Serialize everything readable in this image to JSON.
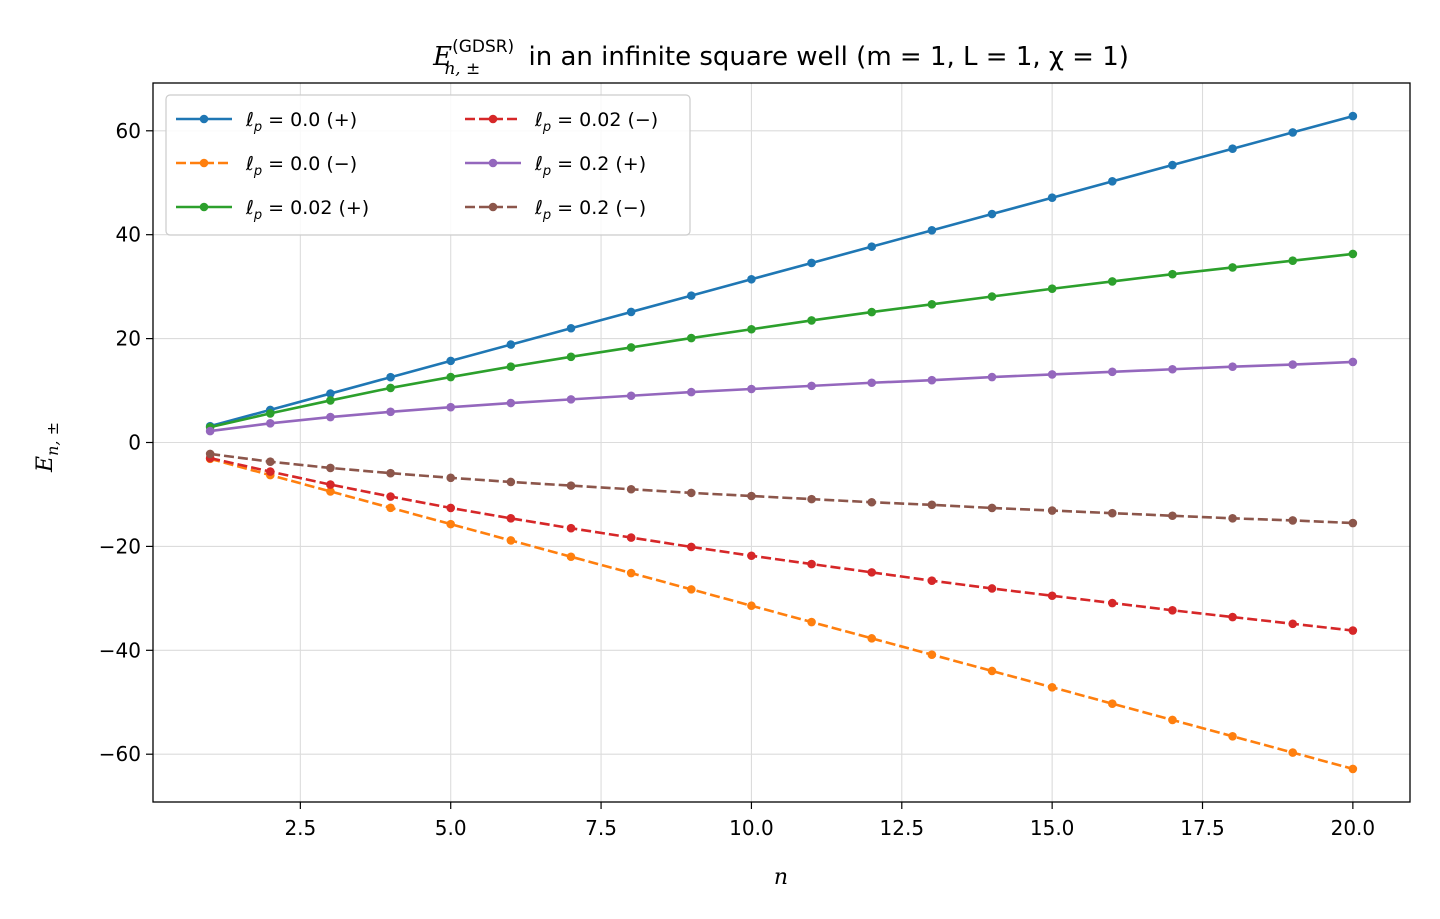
{
  "chart_data": {
    "type": "line",
    "title": {
      "symbol": "E",
      "superscript": "(GDSR)",
      "subscript": "n, ±",
      "rest": " in an infinite square well  (m = 1, L = 1, χ = 1)"
    },
    "xlabel": "n",
    "ylabel": "E_{n, ±}",
    "ylabel_parts": {
      "base": "E",
      "sub": "n, ±"
    },
    "xlim": [
      0.05,
      20.95
    ],
    "ylim": [
      -69.2,
      69.2
    ],
    "xticks": [
      2.5,
      5.0,
      7.5,
      10.0,
      12.5,
      15.0,
      17.5,
      20.0
    ],
    "xtick_labels": [
      "2.5",
      "5.0",
      "7.5",
      "10.0",
      "12.5",
      "15.0",
      "17.5",
      "20.0"
    ],
    "yticks": [
      -60,
      -40,
      -20,
      0,
      20,
      40,
      60
    ],
    "ytick_labels": [
      "−60",
      "−40",
      "−20",
      "0",
      "20",
      "40",
      "60"
    ],
    "grid": true,
    "legend_position": "top-left",
    "legend_columns": 2,
    "x": [
      1,
      2,
      3,
      4,
      5,
      6,
      7,
      8,
      9,
      10,
      11,
      12,
      13,
      14,
      15,
      16,
      17,
      18,
      19,
      20
    ],
    "series": [
      {
        "name": "ℓp = 0.0 (+)",
        "label_parts": {
          "l": "ℓ",
          "sub": "p",
          "rest": " = 0.0 (+)"
        },
        "color": "#1f77b4",
        "dash": "solid",
        "values": [
          3.14,
          6.28,
          9.42,
          12.57,
          15.71,
          18.85,
          21.99,
          25.13,
          28.27,
          31.42,
          34.56,
          37.7,
          40.84,
          43.98,
          47.12,
          50.27,
          53.41,
          56.55,
          59.69,
          62.83
        ]
      },
      {
        "name": "ℓp = 0.0 (−)",
        "label_parts": {
          "l": "ℓ",
          "sub": "p",
          "rest": " = 0.0 (−)"
        },
        "color": "#ff7f0e",
        "dash": "dashed",
        "values": [
          -3.14,
          -6.28,
          -9.42,
          -12.57,
          -15.71,
          -18.85,
          -21.99,
          -25.13,
          -28.27,
          -31.42,
          -34.56,
          -37.7,
          -40.84,
          -43.98,
          -47.12,
          -50.27,
          -53.41,
          -56.55,
          -59.69,
          -62.83
        ]
      },
      {
        "name": "ℓp = 0.02 (+)",
        "label_parts": {
          "l": "ℓ",
          "sub": "p",
          "rest": " = 0.02 (+)"
        },
        "color": "#2ca02c",
        "dash": "solid",
        "values": [
          2.95,
          5.6,
          8.1,
          10.5,
          12.6,
          14.6,
          16.5,
          18.3,
          20.1,
          21.8,
          23.5,
          25.1,
          26.6,
          28.1,
          29.6,
          31.0,
          32.4,
          33.7,
          35.0,
          36.3
        ]
      },
      {
        "name": "ℓp = 0.02 (−)",
        "label_parts": {
          "l": "ℓ",
          "sub": "p",
          "rest": " = 0.02 (−)"
        },
        "color": "#d62728",
        "dash": "dashed",
        "values": [
          -3.0,
          -5.6,
          -8.1,
          -10.4,
          -12.6,
          -14.6,
          -16.5,
          -18.3,
          -20.1,
          -21.8,
          -23.4,
          -25.0,
          -26.6,
          -28.1,
          -29.5,
          -30.9,
          -32.3,
          -33.6,
          -34.9,
          -36.2
        ]
      },
      {
        "name": "ℓp = 0.2 (+)",
        "label_parts": {
          "l": "ℓ",
          "sub": "p",
          "rest": " = 0.2 (+)"
        },
        "color": "#9467bd",
        "dash": "solid",
        "values": [
          2.2,
          3.7,
          4.9,
          5.9,
          6.8,
          7.6,
          8.3,
          9.0,
          9.7,
          10.3,
          10.9,
          11.5,
          12.0,
          12.6,
          13.1,
          13.6,
          14.1,
          14.6,
          15.0,
          15.5
        ]
      },
      {
        "name": "ℓp = 0.2 (−)",
        "label_parts": {
          "l": "ℓ",
          "sub": "p",
          "rest": " = 0.2 (−)"
        },
        "color": "#8c564b",
        "dash": "dashed",
        "values": [
          -2.2,
          -3.7,
          -4.9,
          -5.9,
          -6.8,
          -7.6,
          -8.3,
          -9.0,
          -9.7,
          -10.3,
          -10.9,
          -11.5,
          -12.0,
          -12.6,
          -13.1,
          -13.6,
          -14.1,
          -14.6,
          -15.0,
          -15.5
        ]
      }
    ]
  }
}
